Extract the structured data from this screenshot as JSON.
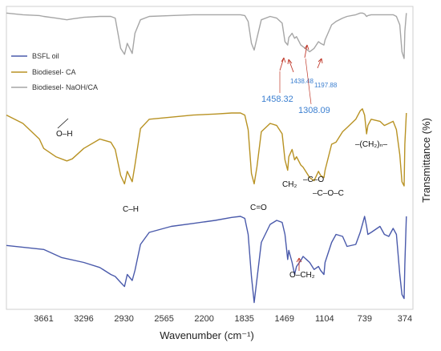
{
  "chart_data": {
    "type": "line",
    "title": "",
    "xlabel": "Wavenumber (cm⁻¹)",
    "ylabel": "Transmittance (%)",
    "x_reversed": true,
    "xlim": [
      4000,
      300
    ],
    "xticks": [
      3661,
      3296,
      2930,
      2565,
      2200,
      1835,
      1469,
      1104,
      739,
      374
    ],
    "grid": false,
    "legend_position": "upper-left",
    "series": [
      {
        "name": "BSFL oil",
        "color": "#4a5aab",
        "x": [
          4000,
          3661,
          3500,
          3296,
          3150,
          3050,
          3010,
          2960,
          2925,
          2900,
          2855,
          2830,
          2780,
          2700,
          2500,
          2300,
          2100,
          1950,
          1870,
          1830,
          1800,
          1770,
          1745,
          1720,
          1680,
          1600,
          1540,
          1490,
          1465,
          1440,
          1430,
          1400,
          1377,
          1360,
          1320,
          1300,
          1240,
          1200,
          1160,
          1140,
          1110,
          1100,
          1040,
          1000,
          940,
          900,
          820,
          780,
          760,
          740,
          722,
          710,
          680,
          600,
          560,
          520,
          480,
          450,
          420,
          400,
          380,
          374,
          360
        ],
        "y": [
          41,
          45,
          53,
          58,
          63,
          70,
          72,
          78,
          82,
          70,
          76,
          66,
          40,
          28,
          22,
          19,
          16,
          13,
          12,
          14,
          30,
          72,
          98,
          75,
          38,
          20,
          16,
          18,
          30,
          55,
          46,
          58,
          70,
          62,
          56,
          52,
          58,
          65,
          62,
          66,
          70,
          58,
          38,
          30,
          32,
          42,
          40,
          28,
          20,
          12,
          22,
          30,
          28,
          22,
          30,
          32,
          24,
          30,
          70,
          90,
          94,
          60,
          12
        ]
      },
      {
        "name": "Biodiesel- CA",
        "color": "#b89223",
        "x": [
          4000,
          3850,
          3700,
          3661,
          3550,
          3450,
          3400,
          3296,
          3150,
          3050,
          3010,
          2960,
          2925,
          2900,
          2855,
          2830,
          2780,
          2700,
          2500,
          2300,
          2100,
          1950,
          1870,
          1830,
          1800,
          1770,
          1745,
          1720,
          1680,
          1600,
          1540,
          1490,
          1465,
          1440,
          1430,
          1400,
          1377,
          1360,
          1320,
          1300,
          1240,
          1200,
          1160,
          1140,
          1110,
          1100,
          1040,
          1000,
          940,
          900,
          820,
          780,
          760,
          740,
          722,
          710,
          680,
          600,
          560,
          520,
          480,
          450,
          420,
          400,
          380,
          374,
          360
        ],
        "y": [
          12,
          20,
          35,
          44,
          52,
          56,
          54,
          44,
          35,
          38,
          45,
          70,
          78,
          66,
          76,
          60,
          25,
          16,
          14,
          12,
          11,
          10,
          10,
          12,
          26,
          68,
          78,
          62,
          28,
          20,
          22,
          30,
          55,
          65,
          52,
          45,
          55,
          52,
          60,
          62,
          72,
          75,
          66,
          70,
          72,
          65,
          40,
          38,
          28,
          24,
          16,
          8,
          6,
          12,
          30,
          22,
          16,
          18,
          22,
          20,
          18,
          26,
          50,
          76,
          80,
          40,
          10
        ]
      },
      {
        "name": "Biodiesel- NaOH/CA",
        "color": "#a6a6a6",
        "x": [
          4000,
          3850,
          3700,
          3661,
          3550,
          3450,
          3400,
          3296,
          3150,
          3050,
          3010,
          2960,
          2925,
          2900,
          2855,
          2830,
          2780,
          2700,
          2500,
          2300,
          2100,
          1950,
          1870,
          1830,
          1800,
          1770,
          1745,
          1720,
          1680,
          1600,
          1540,
          1490,
          1465,
          1440,
          1430,
          1400,
          1377,
          1360,
          1320,
          1300,
          1240,
          1200,
          1160,
          1140,
          1110,
          1100,
          1040,
          1000,
          940,
          900,
          820,
          780,
          760,
          740,
          722,
          710,
          680,
          600,
          560,
          520,
          480,
          450,
          420,
          400,
          380,
          374,
          360
        ],
        "y": [
          6,
          8,
          9,
          10,
          12,
          14,
          13,
          11,
          10,
          10,
          12,
          48,
          55,
          42,
          54,
          30,
          14,
          10,
          9,
          8,
          8,
          8,
          8,
          9,
          16,
          42,
          50,
          36,
          14,
          10,
          12,
          18,
          40,
          44,
          35,
          30,
          36,
          34,
          44,
          46,
          52,
          48,
          40,
          42,
          44,
          38,
          20,
          16,
          12,
          10,
          8,
          6,
          6,
          7,
          10,
          9,
          8,
          8,
          8,
          8,
          8,
          10,
          20,
          52,
          60,
          28,
          6
        ]
      }
    ],
    "annotations": {
      "bands": [
        "O–H",
        "C–H",
        "C=O",
        "CH₂",
        "–C–O",
        "–C–O–C",
        "–(CH₂)ₙ–",
        "O–CH₂"
      ],
      "peaks": [
        "1458.32",
        "1438.48",
        "1308.09",
        "1197.88"
      ]
    }
  }
}
